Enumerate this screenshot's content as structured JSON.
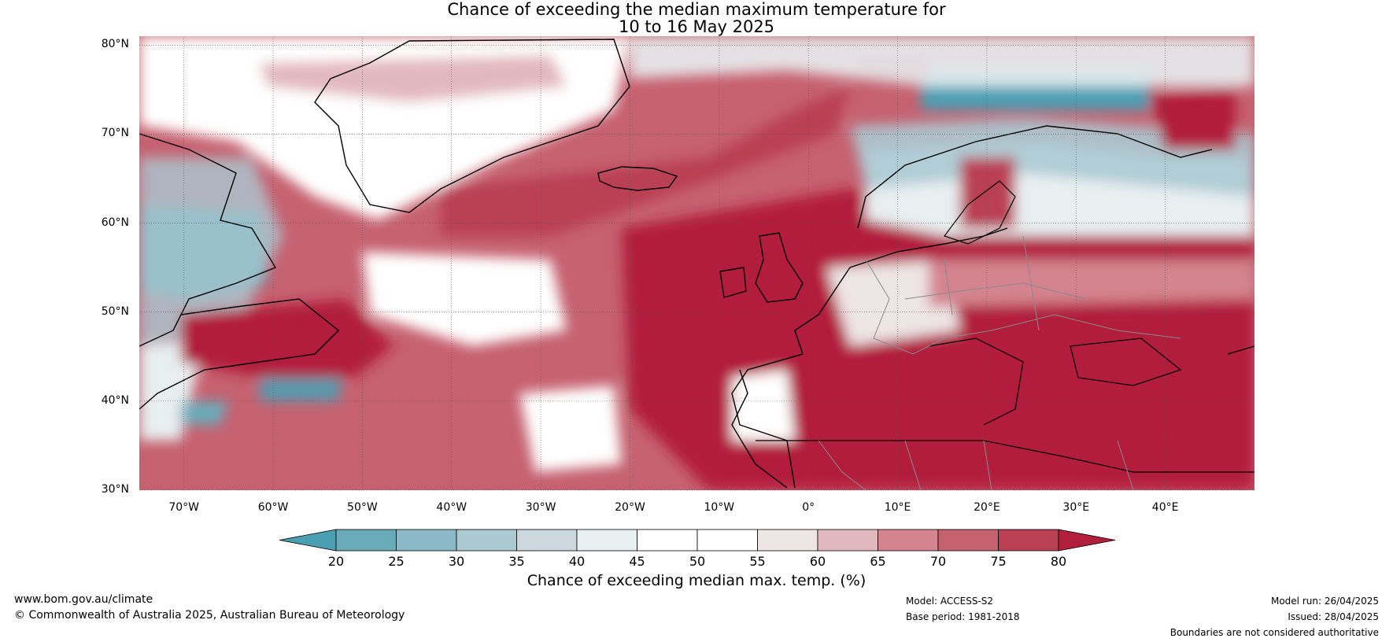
{
  "header": {
    "title_line1": "Chance of exceeding the median maximum temperature for",
    "title_line2": "10 to 16 May 2025"
  },
  "map": {
    "lat_labels": [
      "80°N",
      "70°N",
      "60°N",
      "50°N",
      "40°N",
      "30°N"
    ],
    "lon_labels": [
      "70°W",
      "60°W",
      "50°W",
      "40°W",
      "30°W",
      "20°W",
      "10°W",
      "0°",
      "10°E",
      "20°E",
      "30°E",
      "40°E"
    ],
    "extent": {
      "lon_min": -75,
      "lon_max": 50,
      "lat_min": 30,
      "lat_max": 81
    }
  },
  "colorbar": {
    "title": "Chance of exceeding median max. temp. (%)",
    "ticks": [
      "20",
      "25",
      "30",
      "35",
      "40",
      "45",
      "50",
      "55",
      "60",
      "65",
      "70",
      "75",
      "80"
    ],
    "colors": [
      "#4a9fb3",
      "#6aabb9",
      "#8bbac6",
      "#abc9d1",
      "#cbd9de",
      "#e8eff1",
      "#ffffff",
      "#ffffff",
      "#eee5e6",
      "#e2b8bf",
      "#d4848f",
      "#c66170",
      "#b93f52",
      "#b21f3c"
    ]
  },
  "footer": {
    "website": "www.bom.gov.au/climate",
    "copyright": "© Commonwealth of Australia 2025, Australian Bureau of Meteorology",
    "model": "Model: ACCESS-S2",
    "base_period": "Base period: 1981-2018",
    "model_run": "Model run: 26/04/2025",
    "issued": "Issued: 28/04/2025",
    "disclaimer": "Boundaries are not considered authoritative"
  }
}
